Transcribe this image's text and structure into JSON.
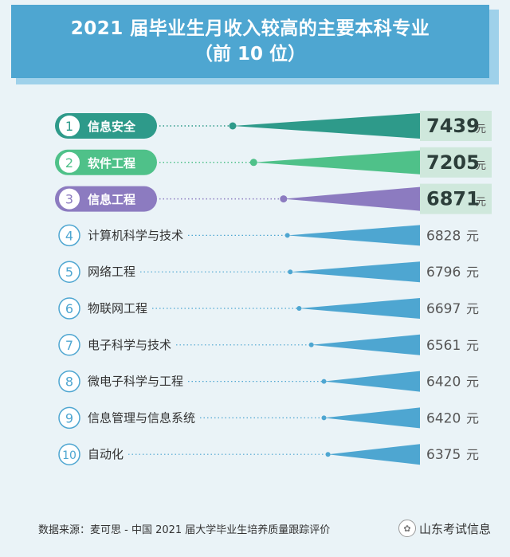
{
  "header": {
    "title_line1": "2021 届毕业生月收入较高的主要本科专业",
    "title_line2": "（前 10 位）"
  },
  "chart_data": {
    "type": "bar",
    "orientation": "horizontal",
    "unit": "元",
    "title": "2021 届毕业生月收入较高的主要本科专业（前 10 位）",
    "items": [
      {
        "rank": "1",
        "name": "信息安全",
        "value": 7439,
        "highlight": true,
        "color": "#2e9a8a"
      },
      {
        "rank": "2",
        "name": "软件工程",
        "value": 7205,
        "highlight": true,
        "color": "#4fc189"
      },
      {
        "rank": "3",
        "name": "信息工程",
        "value": 6871,
        "highlight": true,
        "color": "#8c7bc0"
      },
      {
        "rank": "4",
        "name": "计算机科学与技术",
        "value": 6828,
        "highlight": false,
        "color": "#4ea6d1"
      },
      {
        "rank": "5",
        "name": "网络工程",
        "value": 6796,
        "highlight": false,
        "color": "#4ea6d1"
      },
      {
        "rank": "6",
        "name": "物联网工程",
        "value": 6697,
        "highlight": false,
        "color": "#4ea6d1"
      },
      {
        "rank": "7",
        "name": "电子科学与技术",
        "value": 6561,
        "highlight": false,
        "color": "#4ea6d1"
      },
      {
        "rank": "8",
        "name": "微电子科学与工程",
        "value": 6420,
        "highlight": false,
        "color": "#4ea6d1"
      },
      {
        "rank": "9",
        "name": "信息管理与信息系统",
        "value": 6420,
        "highlight": false,
        "color": "#4ea6d1"
      },
      {
        "rank": "10",
        "name": "自动化",
        "value": 6375,
        "highlight": false,
        "color": "#4ea6d1"
      }
    ]
  },
  "footer": {
    "source": "数据来源：麦可思 - 中国 2021 届大学毕业生培养质量跟踪评价",
    "watermark": "山东考试信息"
  },
  "colors": {
    "background": "#eaf3f7",
    "banner": "#4ea6d1",
    "value_box": "#cfe8dc"
  }
}
